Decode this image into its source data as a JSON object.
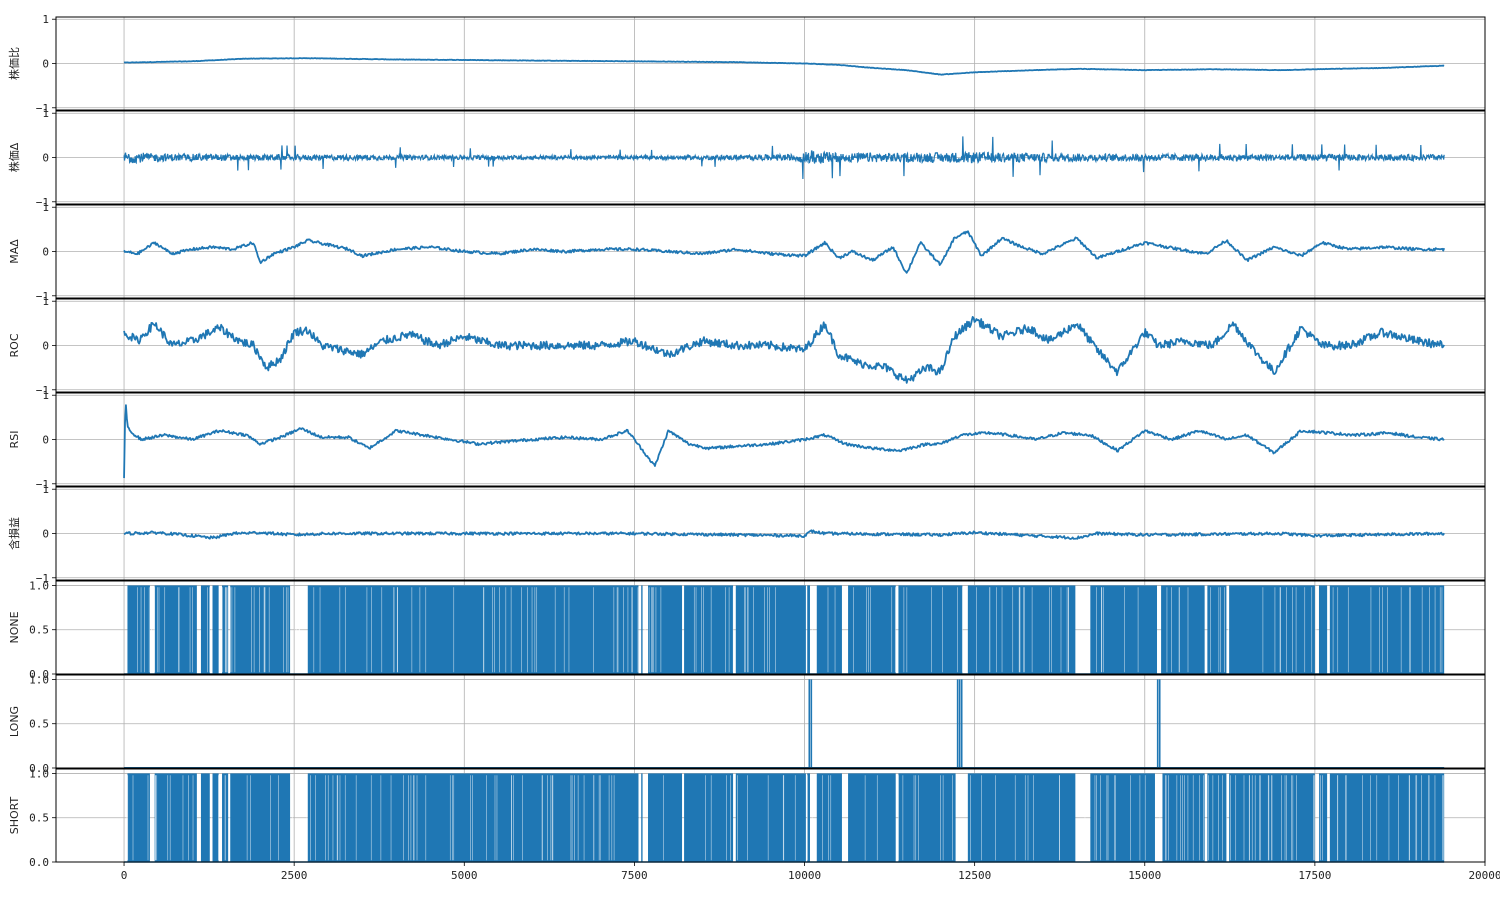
{
  "chart_data": {
    "type": "line",
    "x_range": [
      -1000,
      20000
    ],
    "x_ticks": [
      0,
      2500,
      5000,
      7500,
      10000,
      12500,
      15000,
      17500,
      20000
    ],
    "x_tick_labels": [
      "0",
      "2500",
      "5000",
      "7500",
      "10000",
      "12500",
      "15000",
      "17500",
      "20000"
    ],
    "x_end": 19400,
    "grid": true,
    "line_color": "#1f77b4",
    "panels": [
      {
        "ylabel": "株価比",
        "kind": "line",
        "ylim": [
          -1.05,
          1.05
        ],
        "yticks": [
          1,
          0,
          -1
        ],
        "ytick_labels": [
          "1",
          "0",
          "−1"
        ],
        "x": [
          0,
          1000,
          1800,
          2700,
          4000,
          5000,
          6500,
          7500,
          9000,
          10000,
          10500,
          11000,
          11500,
          12000,
          12500,
          13000,
          14000,
          15000,
          16000,
          17000,
          17500,
          18500,
          19400
        ],
        "y": [
          0.02,
          0.05,
          0.11,
          0.12,
          0.09,
          0.08,
          0.06,
          0.05,
          0.03,
          0.0,
          -0.03,
          -0.1,
          -0.15,
          -0.25,
          -0.2,
          -0.17,
          -0.12,
          -0.15,
          -0.13,
          -0.15,
          -0.13,
          -0.1,
          -0.05
        ]
      },
      {
        "ylabel": "株価Δ",
        "kind": "noise",
        "ylim": [
          -1.05,
          1.05
        ],
        "yticks": [
          1,
          0,
          -1
        ],
        "ytick_labels": [
          "1",
          "0",
          "−1"
        ],
        "x": [
          0,
          500,
          2000,
          5000,
          8000,
          9800,
          10100,
          10500,
          11500,
          12500,
          14000,
          16000,
          19400
        ],
        "amplitude": [
          0.4,
          0.25,
          0.2,
          0.15,
          0.12,
          0.2,
          0.45,
          0.3,
          0.3,
          0.35,
          0.25,
          0.22,
          0.2
        ]
      },
      {
        "ylabel": "MAΔ",
        "kind": "line",
        "ylim": [
          -1.05,
          1.05
        ],
        "yticks": [
          1,
          0,
          -1
        ],
        "ytick_labels": [
          "1",
          "0",
          "−1"
        ],
        "x": [
          0,
          200,
          450,
          700,
          1000,
          1300,
          1600,
          1900,
          2000,
          2200,
          2500,
          2700,
          3000,
          3300,
          3500,
          4000,
          4500,
          5000,
          5500,
          6000,
          6500,
          7000,
          7500,
          8000,
          8500,
          9000,
          9500,
          10000,
          10300,
          10500,
          10700,
          11000,
          11300,
          11500,
          11700,
          12000,
          12200,
          12400,
          12600,
          12900,
          13200,
          13500,
          14000,
          14300,
          14600,
          15000,
          15500,
          15900,
          16200,
          16500,
          16900,
          17300,
          17600,
          18000,
          18500,
          19000,
          19400
        ],
        "y": [
          0.0,
          -0.05,
          0.2,
          -0.05,
          0.05,
          0.1,
          0.05,
          0.2,
          -0.25,
          -0.05,
          0.1,
          0.25,
          0.15,
          0.05,
          -0.1,
          0.05,
          0.1,
          0.0,
          -0.05,
          0.05,
          0.0,
          0.05,
          0.05,
          0.0,
          -0.05,
          0.05,
          -0.05,
          -0.1,
          0.2,
          -0.15,
          0.0,
          -0.2,
          0.1,
          -0.5,
          0.2,
          -0.3,
          0.3,
          0.45,
          -0.1,
          0.3,
          0.1,
          -0.05,
          0.3,
          -0.15,
          0.0,
          0.2,
          0.05,
          -0.05,
          0.25,
          -0.2,
          0.1,
          -0.1,
          0.2,
          0.05,
          0.1,
          0.05,
          0.05
        ]
      },
      {
        "ylabel": "ROC",
        "kind": "line",
        "ylim": [
          -1.05,
          1.05
        ],
        "yticks": [
          1,
          0,
          -1
        ],
        "ytick_labels": [
          "1",
          "0",
          "−1"
        ],
        "x": [
          0,
          200,
          450,
          700,
          1000,
          1400,
          1700,
          1900,
          2100,
          2300,
          2500,
          2700,
          2900,
          3200,
          3500,
          3800,
          4200,
          4600,
          5000,
          5500,
          6000,
          6500,
          7000,
          7500,
          8000,
          8500,
          9000,
          9500,
          10000,
          10300,
          10500,
          10800,
          11200,
          11500,
          11800,
          12000,
          12200,
          12500,
          12900,
          13300,
          13600,
          14000,
          14300,
          14600,
          15000,
          15200,
          15600,
          16000,
          16300,
          16600,
          16900,
          17300,
          17600,
          18000,
          18500,
          19000,
          19400
        ],
        "y": [
          0.3,
          0.1,
          0.5,
          0.0,
          0.1,
          0.4,
          0.1,
          0.0,
          -0.5,
          -0.3,
          0.3,
          0.35,
          0.0,
          -0.1,
          -0.2,
          0.1,
          0.25,
          0.0,
          0.2,
          0.0,
          0.0,
          0.0,
          0.0,
          0.1,
          -0.2,
          0.1,
          0.0,
          0.0,
          -0.1,
          0.5,
          -0.2,
          -0.4,
          -0.5,
          -0.8,
          -0.5,
          -0.6,
          0.2,
          0.6,
          0.2,
          0.4,
          0.1,
          0.5,
          -0.1,
          -0.6,
          0.3,
          0.0,
          0.1,
          0.0,
          0.5,
          -0.1,
          -0.6,
          0.4,
          0.0,
          0.0,
          0.3,
          0.1,
          0.0
        ]
      },
      {
        "ylabel": "RSI",
        "kind": "line",
        "ylim": [
          -1.05,
          1.05
        ],
        "yticks": [
          1,
          0,
          -1
        ],
        "ytick_labels": [
          "1",
          "0",
          "−1"
        ],
        "x": [
          0,
          20,
          50,
          120,
          250,
          600,
          1000,
          1400,
          1800,
          2000,
          2300,
          2600,
          2900,
          3300,
          3600,
          4000,
          4400,
          4800,
          5200,
          5600,
          6000,
          6500,
          7000,
          7400,
          7700,
          7800,
          8000,
          8300,
          8600,
          9000,
          9500,
          10000,
          10300,
          10600,
          11000,
          11400,
          11800,
          12000,
          12300,
          12700,
          13000,
          13400,
          13800,
          14200,
          14600,
          15000,
          15400,
          15800,
          16200,
          16500,
          16900,
          17300,
          17700,
          18100,
          18600,
          19000,
          19400
        ],
        "y": [
          -0.9,
          0.9,
          0.3,
          0.15,
          0.0,
          0.1,
          0.0,
          0.2,
          0.1,
          -0.1,
          0.05,
          0.25,
          0.05,
          0.05,
          -0.2,
          0.2,
          0.1,
          0.0,
          -0.1,
          -0.05,
          0.0,
          0.05,
          0.0,
          0.2,
          -0.4,
          -0.6,
          0.2,
          -0.1,
          -0.2,
          -0.15,
          -0.1,
          0.0,
          0.1,
          -0.1,
          -0.2,
          -0.25,
          -0.1,
          -0.1,
          0.1,
          0.15,
          0.1,
          0.0,
          0.15,
          0.1,
          -0.25,
          0.2,
          0.0,
          0.2,
          0.0,
          0.1,
          -0.3,
          0.2,
          0.15,
          0.1,
          0.15,
          0.05,
          0.0
        ]
      },
      {
        "ylabel": "含損益",
        "kind": "line",
        "ylim": [
          -1.05,
          1.05
        ],
        "yticks": [
          1,
          0,
          -1
        ],
        "ytick_labels": [
          "1",
          "0",
          "−1"
        ],
        "x": [
          0,
          500,
          1000,
          1300,
          1600,
          2000,
          2500,
          3000,
          5000,
          7500,
          10000,
          10100,
          10300,
          12000,
          12500,
          14000,
          14300,
          15000,
          17000,
          17500,
          19400
        ],
        "y": [
          0.0,
          0.02,
          -0.05,
          -0.1,
          0.0,
          0.02,
          -0.03,
          0.0,
          0.0,
          0.0,
          -0.05,
          0.05,
          0.0,
          -0.03,
          0.02,
          -0.1,
          0.0,
          -0.03,
          0.0,
          -0.05,
          0.0
        ]
      },
      {
        "ylabel": "NONE",
        "kind": "binary",
        "ylim": [
          0,
          1.05
        ],
        "yticks": [
          1,
          0.5,
          0
        ],
        "ytick_labels": [
          "1.0",
          "0.5",
          "0.0"
        ],
        "gaps": [
          [
            0,
            50
          ],
          [
            380,
            450
          ],
          [
            1070,
            1130
          ],
          [
            1260,
            1300
          ],
          [
            1390,
            1440
          ],
          [
            1530,
            1560
          ],
          [
            2440,
            2700
          ],
          [
            7560,
            7600
          ],
          [
            7620,
            7700
          ],
          [
            8200,
            8230
          ],
          [
            8950,
            8990
          ],
          [
            10020,
            10040
          ],
          [
            10080,
            10180
          ],
          [
            10550,
            10640
          ],
          [
            11340,
            11380
          ],
          [
            12320,
            12400
          ],
          [
            13980,
            14200
          ],
          [
            15180,
            15240
          ],
          [
            15880,
            15920
          ],
          [
            16200,
            16240
          ],
          [
            17500,
            17560
          ],
          [
            17680,
            17720
          ]
        ]
      },
      {
        "ylabel": "LONG",
        "kind": "spikes",
        "ylim": [
          0,
          1.05
        ],
        "yticks": [
          1,
          0.5,
          0
        ],
        "ytick_labels": [
          "1.0",
          "0.5",
          "0.0"
        ],
        "spikes": [
          10070,
          10100,
          12250,
          12280,
          12310,
          15190,
          15220
        ]
      },
      {
        "ylabel": "SHORT",
        "kind": "binary",
        "ylim": [
          0,
          1.05
        ],
        "yticks": [
          1,
          0.5,
          0
        ],
        "ytick_labels": [
          "1.0",
          "0.5",
          "0.0"
        ],
        "gaps": [
          [
            0,
            50
          ],
          [
            380,
            450
          ],
          [
            1070,
            1130
          ],
          [
            1260,
            1300
          ],
          [
            1390,
            1440
          ],
          [
            1530,
            1560
          ],
          [
            2440,
            2700
          ],
          [
            7560,
            7600
          ],
          [
            7620,
            7700
          ],
          [
            8200,
            8230
          ],
          [
            8950,
            8990
          ],
          [
            10020,
            10040
          ],
          [
            10080,
            10180
          ],
          [
            10550,
            10640
          ],
          [
            11340,
            11380
          ],
          [
            12220,
            12400
          ],
          [
            13980,
            14200
          ],
          [
            15150,
            15260
          ],
          [
            15880,
            15920
          ],
          [
            16200,
            16240
          ],
          [
            17500,
            17560
          ],
          [
            17680,
            17720
          ]
        ]
      }
    ]
  }
}
